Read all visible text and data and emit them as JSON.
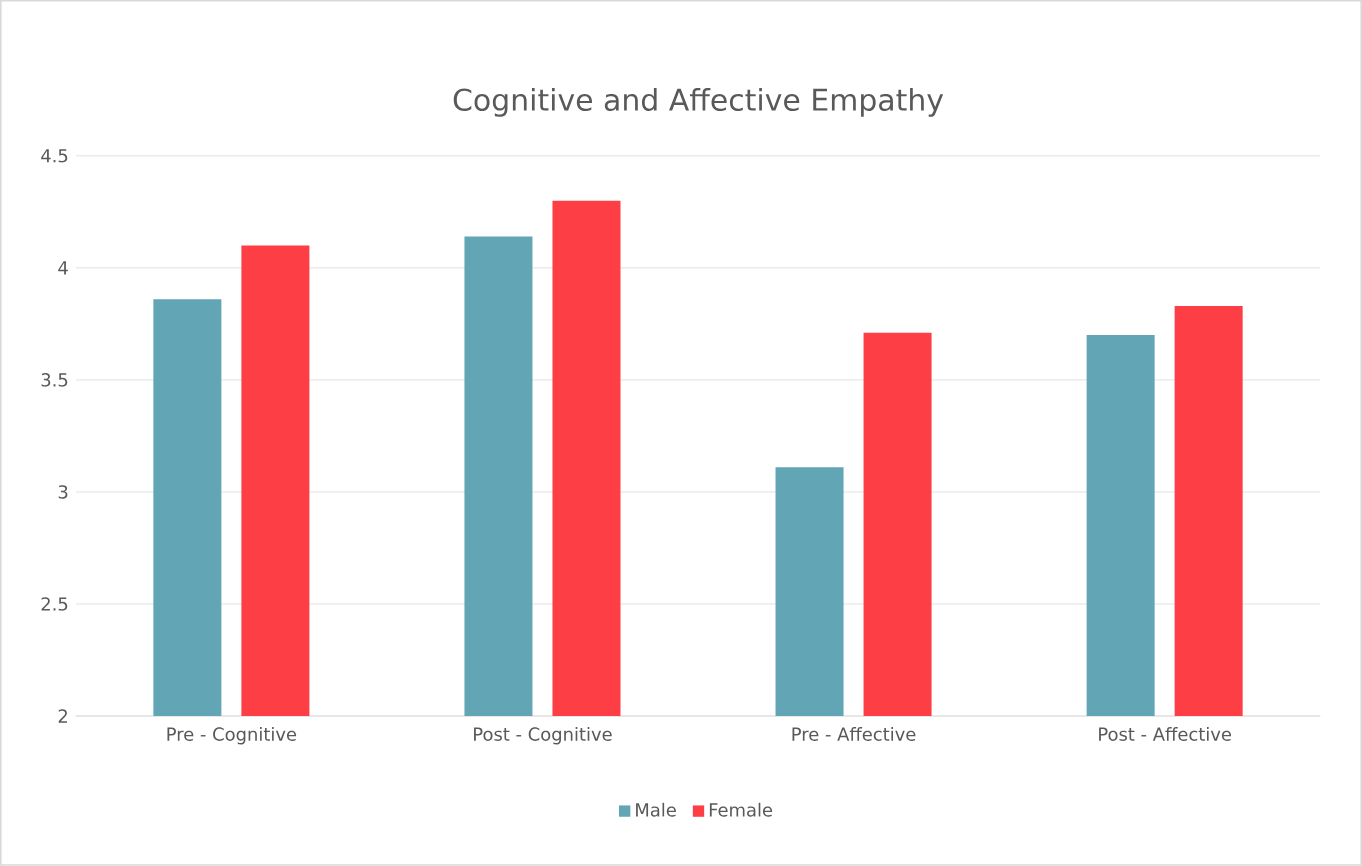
{
  "chart_data": {
    "type": "bar",
    "title": "Cognitive and Affective Empathy",
    "categories": [
      "Pre - Cognitive",
      "Post - Cognitive",
      "Pre - Affective",
      "Post - Affective"
    ],
    "series": [
      {
        "name": "Male",
        "color": "#62a6b6",
        "values": [
          3.86,
          4.14,
          3.11,
          3.7
        ]
      },
      {
        "name": "Female",
        "color": "#fd3f45",
        "values": [
          4.1,
          4.3,
          3.71,
          3.83
        ]
      }
    ],
    "ylim": [
      2,
      4.5
    ],
    "yticks": [
      2,
      {
        "value": 2.5,
        "label": "2.5"
      },
      3,
      {
        "value": 3.5,
        "label": "3.5"
      },
      4,
      {
        "value": 4.5,
        "label": "4.5"
      }
    ],
    "grid": "y",
    "legend": "bottom"
  }
}
